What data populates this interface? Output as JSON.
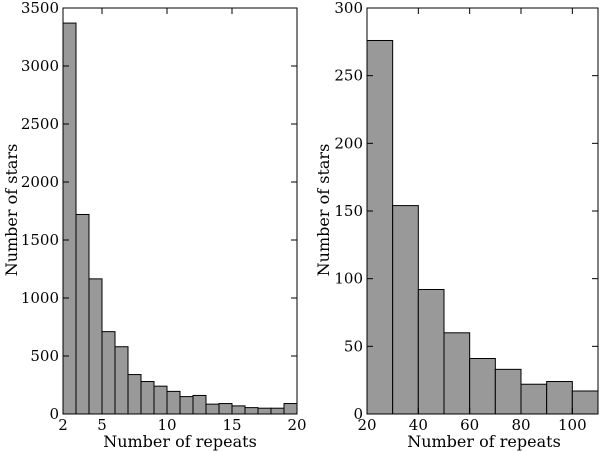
{
  "chart_data": [
    {
      "type": "bar",
      "xlabel": "Number of repeats",
      "ylabel": "Number of stars",
      "xlim": [
        2,
        20
      ],
      "ylim": [
        0,
        3500
      ],
      "xticks": [
        2,
        5,
        10,
        15,
        20
      ],
      "yticks": [
        0,
        500,
        1000,
        1500,
        2000,
        2500,
        3000,
        3500
      ],
      "bins": [
        {
          "x0": 2,
          "x1": 3,
          "value": 3370
        },
        {
          "x0": 3,
          "x1": 4,
          "value": 1720
        },
        {
          "x0": 4,
          "x1": 5,
          "value": 1165
        },
        {
          "x0": 5,
          "x1": 6,
          "value": 710
        },
        {
          "x0": 6,
          "x1": 7,
          "value": 580
        },
        {
          "x0": 7,
          "x1": 8,
          "value": 340
        },
        {
          "x0": 8,
          "x1": 9,
          "value": 280
        },
        {
          "x0": 9,
          "x1": 10,
          "value": 240
        },
        {
          "x0": 10,
          "x1": 11,
          "value": 195
        },
        {
          "x0": 11,
          "x1": 12,
          "value": 150
        },
        {
          "x0": 12,
          "x1": 13,
          "value": 160
        },
        {
          "x0": 13,
          "x1": 14,
          "value": 85
        },
        {
          "x0": 14,
          "x1": 15,
          "value": 90
        },
        {
          "x0": 15,
          "x1": 16,
          "value": 70
        },
        {
          "x0": 16,
          "x1": 17,
          "value": 55
        },
        {
          "x0": 17,
          "x1": 18,
          "value": 50
        },
        {
          "x0": 18,
          "x1": 19,
          "value": 50
        },
        {
          "x0": 19,
          "x1": 20,
          "value": 90
        }
      ],
      "grid": false
    },
    {
      "type": "bar",
      "xlabel": "Number of repeats",
      "ylabel": "Number of stars",
      "xlim": [
        20,
        110
      ],
      "ylim": [
        0,
        300
      ],
      "xticks": [
        20,
        40,
        60,
        80,
        100
      ],
      "yticks": [
        0,
        50,
        100,
        150,
        200,
        250,
        300
      ],
      "bins": [
        {
          "x0": 20,
          "x1": 30,
          "value": 276
        },
        {
          "x0": 30,
          "x1": 40,
          "value": 154
        },
        {
          "x0": 40,
          "x1": 50,
          "value": 92
        },
        {
          "x0": 50,
          "x1": 60,
          "value": 60
        },
        {
          "x0": 60,
          "x1": 70,
          "value": 41
        },
        {
          "x0": 70,
          "x1": 80,
          "value": 33
        },
        {
          "x0": 80,
          "x1": 90,
          "value": 22
        },
        {
          "x0": 90,
          "x1": 100,
          "value": 24
        },
        {
          "x0": 100,
          "x1": 110,
          "value": 17
        }
      ],
      "grid": false
    }
  ]
}
